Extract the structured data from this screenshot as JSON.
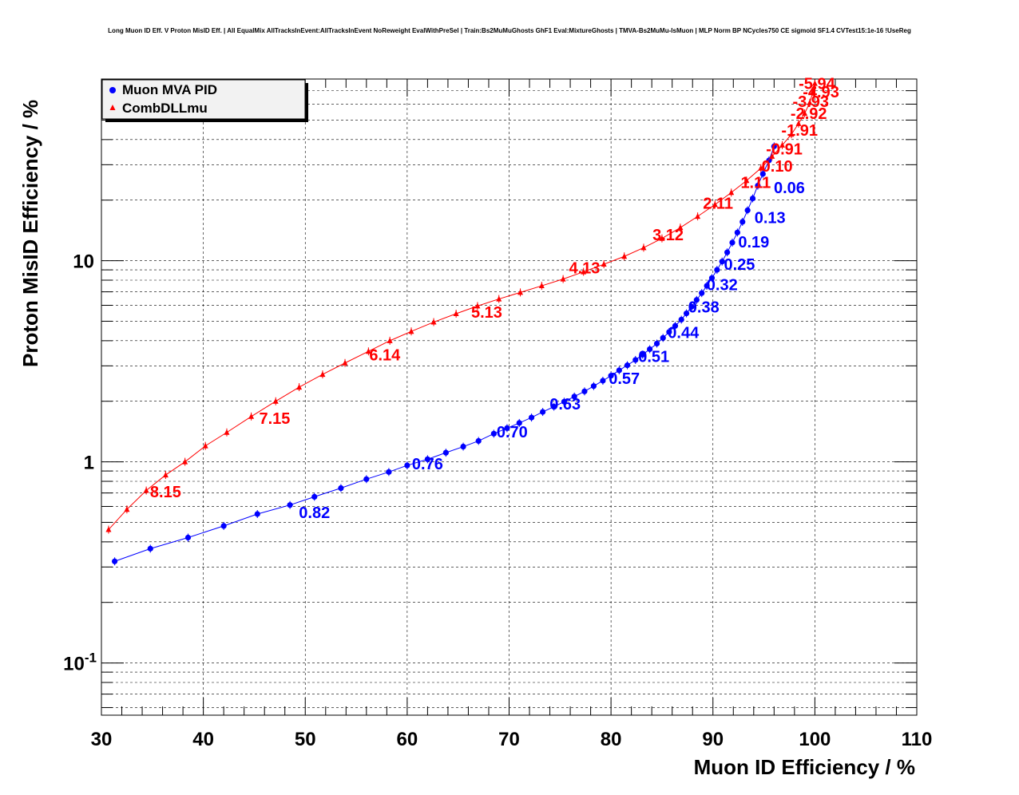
{
  "chart_data": {
    "type": "line",
    "title": "Long Muon ID Eff. V Proton MisID Eff. | All EqualMix AllTracksInEvent:AllTracksInEvent NoReweight EvalWithPreSel | Train:Bs2MuMuGhosts GhF1 Eval:MixtureGhosts | TMVA-Bs2MuMu-IsMuon | MLP Norm BP NCycles750 CE sigmoid SF1.4 CVTest15:1e-16 !UseReg",
    "xlabel": "Muon ID Efficiency / %",
    "ylabel": "Proton MisID Efficiency / %",
    "xlim": [
      30,
      110
    ],
    "ylim": [
      0.055,
      80
    ],
    "yscale": "log",
    "grid": true,
    "legend_position": "top-left",
    "x_ticks": [
      "30",
      "40",
      "50",
      "60",
      "70",
      "80",
      "90",
      "100",
      "110"
    ],
    "y_ticks": [
      {
        "value": 0.1,
        "base": "10",
        "exp": "-1"
      },
      {
        "value": 1,
        "base": "1",
        "exp": ""
      },
      {
        "value": 10,
        "base": "10",
        "exp": ""
      }
    ],
    "series": [
      {
        "name": "Muon MVA PID",
        "color": "#0000ff",
        "marker": "circle",
        "points": [
          [
            31.3,
            0.32
          ],
          [
            34.8,
            0.37
          ],
          [
            38.5,
            0.42
          ],
          [
            42.0,
            0.48
          ],
          [
            45.3,
            0.55
          ],
          [
            48.5,
            0.61
          ],
          [
            50.9,
            0.67
          ],
          [
            53.5,
            0.74
          ],
          [
            56.0,
            0.82
          ],
          [
            58.2,
            0.89
          ],
          [
            60.0,
            0.96
          ],
          [
            62.0,
            1.03
          ],
          [
            63.8,
            1.11
          ],
          [
            65.5,
            1.19
          ],
          [
            67.0,
            1.27
          ],
          [
            68.5,
            1.38
          ],
          [
            69.8,
            1.47
          ],
          [
            71.0,
            1.56
          ],
          [
            72.2,
            1.66
          ],
          [
            73.3,
            1.77
          ],
          [
            74.4,
            1.88
          ],
          [
            75.4,
            1.99
          ],
          [
            76.4,
            2.11
          ],
          [
            77.4,
            2.24
          ],
          [
            78.3,
            2.38
          ],
          [
            79.2,
            2.53
          ],
          [
            80.0,
            2.68
          ],
          [
            80.8,
            2.85
          ],
          [
            81.6,
            3.02
          ],
          [
            82.4,
            3.21
          ],
          [
            83.1,
            3.41
          ],
          [
            83.8,
            3.63
          ],
          [
            84.5,
            3.87
          ],
          [
            85.1,
            4.13
          ],
          [
            85.7,
            4.42
          ],
          [
            86.3,
            4.74
          ],
          [
            86.9,
            5.09
          ],
          [
            87.4,
            5.47
          ],
          [
            87.9,
            5.9
          ],
          [
            88.4,
            6.38
          ],
          [
            88.9,
            6.9
          ],
          [
            89.4,
            7.5
          ],
          [
            89.9,
            8.2
          ],
          [
            90.4,
            9.0
          ],
          [
            90.9,
            9.9
          ],
          [
            91.4,
            11.0
          ],
          [
            91.9,
            12.3
          ],
          [
            92.4,
            13.8
          ],
          [
            92.9,
            15.6
          ],
          [
            93.4,
            17.8
          ],
          [
            93.9,
            20.4
          ],
          [
            94.4,
            23.6
          ],
          [
            94.9,
            27.0
          ],
          [
            95.5,
            31.5
          ],
          [
            96.0,
            37.0
          ]
        ],
        "annotations": [
          {
            "label": "0.82",
            "x": 50.9,
            "y": 0.56
          },
          {
            "label": "0.76",
            "x": 62.0,
            "y": 0.98
          },
          {
            "label": "0.70",
            "x": 70.3,
            "y": 1.41
          },
          {
            "label": "0.63",
            "x": 75.5,
            "y": 1.94
          },
          {
            "label": "0.57",
            "x": 81.3,
            "y": 2.6
          },
          {
            "label": "0.51",
            "x": 84.2,
            "y": 3.35
          },
          {
            "label": "0.44",
            "x": 87.1,
            "y": 4.4
          },
          {
            "label": "0.38",
            "x": 89.1,
            "y": 5.9
          },
          {
            "label": "0.32",
            "x": 90.9,
            "y": 7.6
          },
          {
            "label": "0.25",
            "x": 92.6,
            "y": 9.6
          },
          {
            "label": "0.19",
            "x": 94.0,
            "y": 12.4
          },
          {
            "label": "0.13",
            "x": 95.6,
            "y": 16.4
          },
          {
            "label": "0.06",
            "x": 97.5,
            "y": 23.1
          }
        ]
      },
      {
        "name": "CombDLLmu",
        "color": "#ff0000",
        "marker": "triangle",
        "points": [
          [
            30.7,
            0.46
          ],
          [
            32.5,
            0.58
          ],
          [
            34.4,
            0.72
          ],
          [
            36.3,
            0.86
          ],
          [
            38.2,
            1.0
          ],
          [
            40.2,
            1.2
          ],
          [
            42.3,
            1.4
          ],
          [
            44.7,
            1.68
          ],
          [
            47.1,
            2.0
          ],
          [
            49.4,
            2.35
          ],
          [
            51.7,
            2.72
          ],
          [
            53.9,
            3.1
          ],
          [
            56.2,
            3.54
          ],
          [
            58.3,
            4.0
          ],
          [
            60.4,
            4.45
          ],
          [
            62.6,
            4.95
          ],
          [
            64.8,
            5.45
          ],
          [
            66.9,
            5.95
          ],
          [
            69.0,
            6.45
          ],
          [
            71.1,
            6.95
          ],
          [
            73.2,
            7.5
          ],
          [
            75.3,
            8.1
          ],
          [
            77.3,
            8.8
          ],
          [
            79.3,
            9.6
          ],
          [
            81.3,
            10.5
          ],
          [
            83.2,
            11.6
          ],
          [
            85.0,
            12.9
          ],
          [
            86.8,
            14.6
          ],
          [
            88.5,
            16.6
          ],
          [
            90.2,
            19.0
          ],
          [
            91.8,
            21.8
          ],
          [
            93.3,
            25.0
          ],
          [
            94.7,
            28.8
          ],
          [
            95.8,
            33.0
          ],
          [
            96.8,
            37.5
          ],
          [
            97.7,
            42.5
          ],
          [
            98.4,
            48.0
          ],
          [
            99.0,
            54.0
          ],
          [
            99.5,
            61.0
          ],
          [
            99.8,
            69.0
          ],
          [
            100.0,
            76.0
          ]
        ],
        "annotations": [
          {
            "label": "8.15",
            "x": 36.3,
            "y": 0.71
          },
          {
            "label": "7.15",
            "x": 47.0,
            "y": 1.65
          },
          {
            "label": "6.14",
            "x": 57.8,
            "y": 3.4
          },
          {
            "label": "5.13",
            "x": 67.8,
            "y": 5.55
          },
          {
            "label": "4.13",
            "x": 77.4,
            "y": 9.2
          },
          {
            "label": "3.12",
            "x": 85.6,
            "y": 13.45
          },
          {
            "label": "2.11",
            "x": 90.5,
            "y": 19.3
          },
          {
            "label": "1.11",
            "x": 94.2,
            "y": 24.5
          },
          {
            "label": "0.10",
            "x": 96.3,
            "y": 29.5
          },
          {
            "label": "-0.91",
            "x": 97.0,
            "y": 36.0
          },
          {
            "label": "-1.91",
            "x": 98.5,
            "y": 44.5
          },
          {
            "label": "-2.92",
            "x": 99.4,
            "y": 54.0
          },
          {
            "label": "-3.93",
            "x": 99.6,
            "y": 62.0
          },
          {
            "label": "-4.93",
            "x": 100.6,
            "y": 69.0
          },
          {
            "label": "-5.94",
            "x": 100.2,
            "y": 76.0
          }
        ]
      }
    ]
  }
}
